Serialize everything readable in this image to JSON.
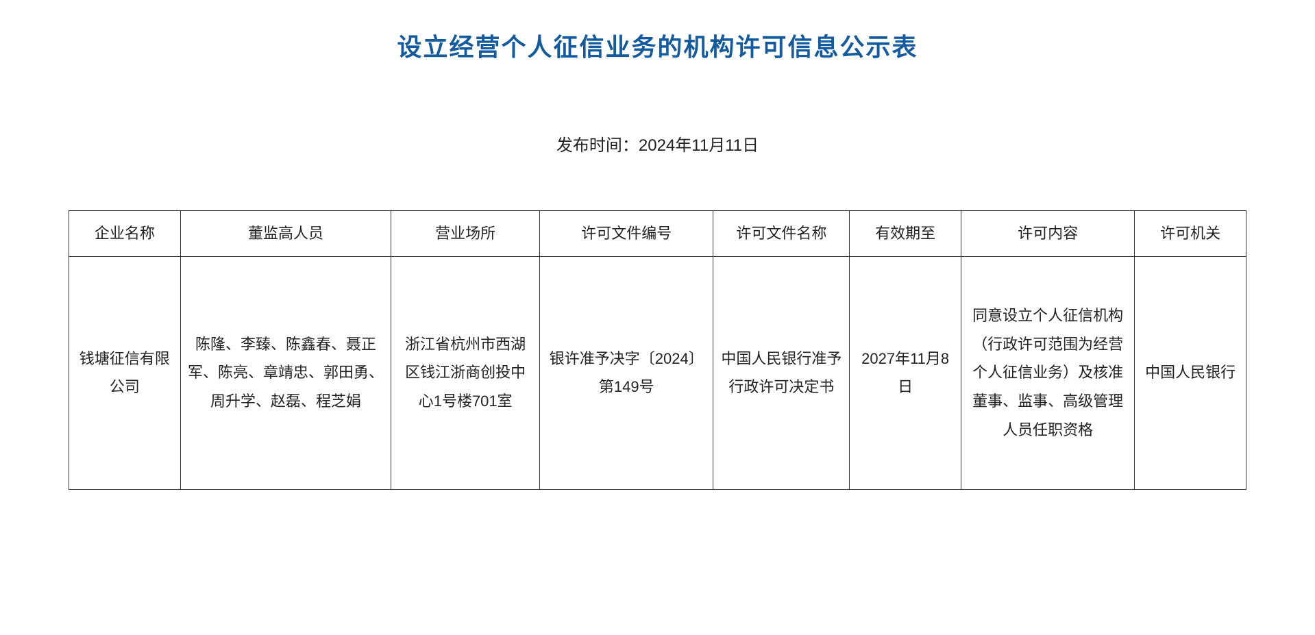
{
  "document": {
    "title": "设立经营个人征信业务的机构许可信息公示表",
    "publish_date_label": "发布时间：2024年11月11日",
    "title_color": "#135a9e",
    "text_color": "#222222",
    "border_color": "#333333",
    "background_color": "#ffffff",
    "title_fontsize": 36,
    "body_fontsize": 22,
    "date_fontsize": 24
  },
  "table": {
    "columns": [
      "企业名称",
      "董监高人员",
      "营业场所",
      "许可文件编号",
      "许可文件名称",
      "有效期至",
      "许可内容",
      "许可机关"
    ],
    "rows": [
      {
        "company_name": "钱塘征信有限公司",
        "personnel": "陈隆、李臻、陈鑫春、聂正军、陈亮、章靖忠、郭田勇、周升学、赵磊、程芝娟",
        "business_address": "浙江省杭州市西湖区钱江浙商创投中心1号楼701室",
        "license_doc_no": "银许准予决字〔2024〕第149号",
        "license_doc_name": "中国人民银行准予行政许可决定书",
        "valid_until": "2027年11月8日",
        "license_content": "同意设立个人征信机构（行政许可范围为经营个人征信业务）及核准董事、监事、高级管理人员任职资格",
        "license_authority": "中国人民银行"
      }
    ]
  }
}
